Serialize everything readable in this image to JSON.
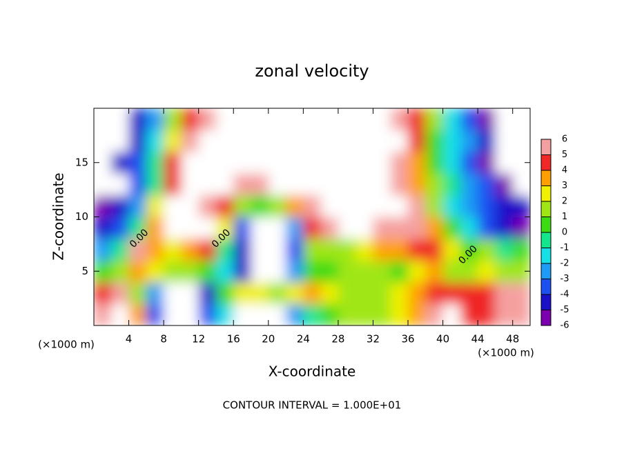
{
  "chart_data": {
    "type": "contour",
    "title": "zonal velocity",
    "xlabel": "X-coordinate",
    "ylabel": "Z-coordinate",
    "x_unit": "(×1000 m)",
    "y_unit": "(×1000 m)",
    "footer": "CONTOUR INTERVAL = 1.000E+01",
    "x": [
      1,
      3,
      5,
      7,
      9,
      11,
      13,
      15,
      17,
      19,
      21,
      23,
      25,
      27,
      29,
      31,
      33,
      35,
      37,
      39,
      41,
      43,
      45,
      47,
      49
    ],
    "y": [
      1,
      3,
      5,
      7,
      9,
      11,
      13,
      15,
      17,
      19
    ],
    "z": [
      [
        6,
        7,
        3,
        -4,
        -8,
        -8,
        -4,
        -2,
        7,
        8,
        7,
        -3,
        -1,
        0,
        1,
        1,
        1,
        2,
        3,
        5,
        7,
        4,
        4,
        6,
        6
      ],
      [
        4,
        5,
        1,
        -3,
        -8,
        -8,
        -5,
        0,
        2,
        2,
        1,
        2,
        3,
        2,
        1,
        1,
        1,
        2,
        3,
        4,
        4,
        4,
        4,
        5,
        5
      ],
      [
        0,
        1,
        3,
        2,
        1,
        1,
        0,
        -2,
        -5,
        -7,
        -7,
        -3,
        0,
        0,
        1,
        1,
        1,
        0,
        2,
        3,
        1,
        1,
        2,
        1,
        1
      ],
      [
        -3,
        -1,
        5,
        3,
        2,
        3,
        4,
        -1,
        -5,
        -8,
        -8,
        -4,
        1,
        1,
        1,
        2,
        3,
        3,
        4,
        4,
        2,
        0,
        1,
        -1,
        0
      ],
      [
        -5,
        -4,
        -1,
        3,
        8,
        8,
        7,
        2,
        -4,
        -8,
        -8,
        -3,
        4,
        6,
        7,
        7,
        6,
        6,
        5,
        3,
        0,
        -2,
        -4,
        -5,
        -6
      ],
      [
        -6,
        -5,
        -3,
        2,
        8,
        8,
        6,
        4,
        1,
        0,
        1,
        3,
        5,
        7,
        8,
        8,
        8,
        8,
        5,
        1,
        -2,
        -3,
        -4,
        -5,
        -5
      ],
      [
        -8,
        -7,
        -4,
        -1,
        4,
        8,
        8,
        7,
        6,
        6,
        7,
        8,
        8,
        8,
        8,
        8,
        8,
        6,
        3,
        1,
        -1,
        -3,
        -4,
        -6,
        -7
      ],
      [
        -8,
        -5,
        -4,
        -1,
        4,
        7,
        8,
        8,
        8,
        8,
        8,
        8,
        8,
        8,
        8,
        8,
        8,
        6,
        3,
        0,
        -2,
        -4,
        -6,
        -8,
        -8
      ],
      [
        -8,
        -8,
        -5,
        -2,
        2,
        5,
        7,
        8,
        8,
        8,
        8,
        8,
        8,
        8,
        8,
        8,
        8,
        7,
        4,
        0,
        -2,
        -3,
        -5,
        -8,
        -8
      ],
      [
        -8,
        -8,
        -5,
        -3,
        1,
        4,
        6,
        8,
        8,
        8,
        8,
        8,
        8,
        8,
        8,
        8,
        8,
        6,
        4,
        1,
        -2,
        -4,
        -6,
        -8,
        -8
      ]
    ],
    "xlim": [
      0,
      50
    ],
    "ylim": [
      0,
      20
    ],
    "xticks": [
      4,
      8,
      12,
      16,
      20,
      24,
      28,
      32,
      36,
      40,
      44,
      48
    ],
    "yticks": [
      5,
      10,
      15
    ],
    "colorbar": {
      "levels": [
        -6,
        -5,
        -4,
        -3,
        -2,
        -1,
        0,
        1,
        2,
        3,
        4,
        5,
        6
      ],
      "colors": [
        "#7a00b0",
        "#1a10c8",
        "#1e50f0",
        "#1e9bf5",
        "#14e0e6",
        "#14e68c",
        "#3cdc14",
        "#a0e614",
        "#f0f000",
        "#ffa000",
        "#f02828",
        "#f5a0a0"
      ]
    },
    "contour_labels": [
      {
        "text": "0.00",
        "x": 5.2,
        "y": 8.0
      },
      {
        "text": "0.00",
        "x": 14.6,
        "y": 8.0
      },
      {
        "text": "0.00",
        "x": 42.9,
        "y": 6.5
      }
    ]
  }
}
